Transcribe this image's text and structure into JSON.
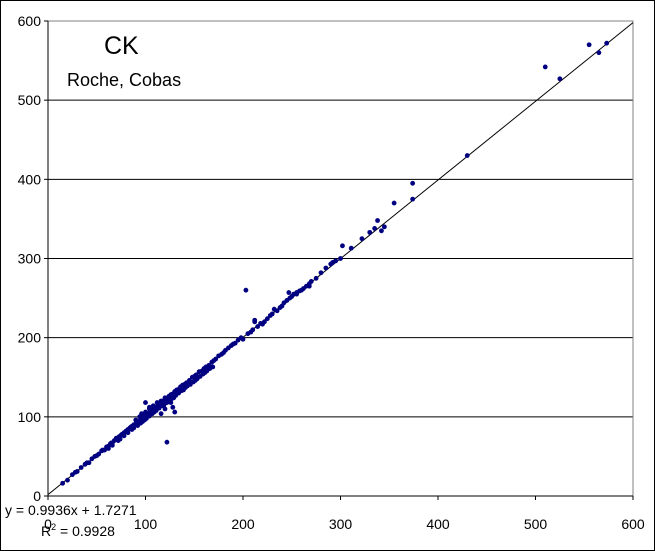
{
  "chart_data": {
    "type": "scatter",
    "title": "CK",
    "subtitle": "Roche, Cobas",
    "xlabel": "",
    "ylabel": "",
    "xlim": [
      0,
      600
    ],
    "ylim": [
      0,
      600
    ],
    "x_ticks": [
      0,
      100,
      200,
      300,
      400,
      500,
      600
    ],
    "y_ticks": [
      0,
      100,
      200,
      300,
      400,
      500,
      600
    ],
    "grid": {
      "horizontal": true,
      "vertical": false
    },
    "legend": "none",
    "trendline": {
      "slope": 0.9936,
      "intercept": 1.7271,
      "equation": "y = 0.9936x + 1.7271",
      "r2_prefix": "R",
      "r2_sup": "2",
      "r2_value": " = 0.9928"
    },
    "series": [
      {
        "color": "#000080",
        "x": [
          15,
          20,
          25,
          28,
          30,
          34,
          38,
          40,
          42,
          45,
          48,
          50,
          52,
          55,
          56,
          58,
          60,
          62,
          64,
          65,
          66,
          68,
          70,
          72,
          73,
          75,
          76,
          78,
          80,
          82,
          84,
          85,
          86,
          88,
          90,
          92,
          93,
          95,
          96,
          98,
          100,
          102,
          103,
          105,
          106,
          108,
          110,
          112,
          113,
          115,
          116,
          118,
          120,
          121,
          123,
          125,
          126,
          128,
          130,
          132,
          133,
          135,
          136,
          138,
          140,
          142,
          145,
          148,
          150,
          152,
          155,
          158,
          160,
          162,
          165,
          168,
          170,
          172,
          175,
          178,
          180,
          182,
          185,
          188,
          190,
          192,
          195,
          198,
          62,
          66,
          72,
          74,
          78,
          82,
          86,
          88,
          92,
          95,
          97,
          99,
          101,
          104,
          107,
          109,
          111,
          114,
          117,
          119,
          122,
          124,
          127,
          129,
          131,
          134,
          137,
          139,
          141,
          143,
          146,
          149,
          151,
          153,
          156,
          159,
          161,
          163,
          166,
          169,
          90,
          94,
          96,
          100,
          104,
          108,
          112,
          116,
          120,
          124,
          100,
          104,
          110,
          116,
          120,
          126,
          130,
          122,
          128,
          200,
          205,
          208,
          210,
          212,
          215,
          218,
          220,
          222,
          225,
          228,
          230,
          235,
          238,
          240,
          242,
          245,
          248,
          250,
          252,
          255,
          258,
          260,
          262,
          265,
          268,
          270,
          275,
          280,
          285,
          290,
          295,
          300,
          203,
          212,
          232,
          247,
          255,
          268,
          292,
          302,
          311,
          322,
          330,
          335,
          338,
          342,
          345,
          355,
          374,
          374,
          430,
          510,
          525,
          555,
          565,
          573
        ],
        "y": [
          16,
          20,
          27,
          30,
          31,
          36,
          40,
          42,
          42,
          47,
          50,
          51,
          53,
          57,
          58,
          58,
          62,
          63,
          66,
          67,
          67,
          70,
          73,
          73,
          75,
          77,
          78,
          80,
          82,
          84,
          86,
          87,
          88,
          90,
          91,
          93,
          94,
          96,
          97,
          99,
          102,
          104,
          104,
          106,
          107,
          109,
          112,
          113,
          115,
          117,
          117,
          120,
          121,
          121,
          124,
          126,
          128,
          129,
          132,
          134,
          134,
          136,
          138,
          140,
          141,
          143,
          146,
          150,
          151,
          153,
          157,
          158,
          161,
          163,
          165,
          169,
          171,
          173,
          177,
          179,
          181,
          184,
          187,
          190,
          192,
          193,
          197,
          200,
          60,
          64,
          70,
          72,
          76,
          80,
          84,
          86,
          89,
          92,
          94,
          96,
          98,
          101,
          104,
          106,
          108,
          111,
          114,
          115,
          118,
          120,
          123,
          124,
          127,
          130,
          133,
          134,
          137,
          139,
          141,
          144,
          146,
          148,
          151,
          154,
          156,
          158,
          161,
          163,
          96,
          100,
          104,
          106,
          110,
          114,
          118,
          120,
          124,
          126,
          118,
          112,
          108,
          104,
          110,
          118,
          106,
          68,
          112,
          198,
          205,
          207,
          210,
          220,
          214,
          218,
          217,
          220,
          224,
          228,
          230,
          234,
          238,
          240,
          244,
          247,
          250,
          252,
          255,
          257,
          259,
          260,
          262,
          265,
          268,
          271,
          275,
          282,
          288,
          293,
          297,
          300,
          260,
          222,
          236,
          257,
          255,
          265,
          295,
          316,
          313,
          325,
          333,
          338,
          348,
          335,
          340,
          370,
          375,
          395,
          430,
          542,
          527,
          570,
          560,
          572
        ]
      }
    ]
  }
}
